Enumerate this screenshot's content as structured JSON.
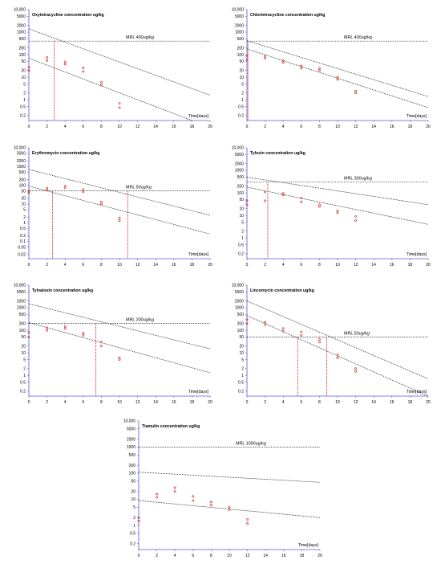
{
  "colors": {
    "axis": "#5a5adc",
    "tick": "#5a5adc",
    "line": "#000000",
    "points": "#d63a3a",
    "vline": "#c00000",
    "mrl": "#000000"
  },
  "chart_data": [
    {
      "type": "scatter",
      "title": "Oxytetracycline concentration ug/kg",
      "y_tick_labels": [
        "10,000",
        "5000",
        "2000",
        "1000",
        "500",
        "200",
        "100",
        "50",
        "20",
        "10",
        "5",
        "2",
        "1",
        "0.5",
        "0.2"
      ],
      "x_tick_labels": [
        "0",
        "2",
        "4",
        "6",
        "8",
        "10",
        "12",
        "14",
        "16",
        "18",
        "20"
      ],
      "xlabel": "Time[days]",
      "xlim": [
        0,
        20
      ],
      "ylim": [
        0.12,
        10000
      ],
      "y_scale": "log",
      "mrl": {
        "label": "MRL 400ug/kg",
        "value": 400
      },
      "intersections_days": [
        2.8
      ],
      "bands": [
        {
          "x": [
            0,
            20
          ],
          "y": [
            1400,
            1.6
          ]
        },
        {
          "x": [
            0,
            18
          ],
          "y": [
            70,
            0.12
          ]
        }
      ],
      "points": [
        {
          "x": 0,
          "y": 20
        },
        {
          "x": 0,
          "y": 28
        },
        {
          "x": 2,
          "y": 55
        },
        {
          "x": 2,
          "y": 75
        },
        {
          "x": 4,
          "y": 38
        },
        {
          "x": 4,
          "y": 48
        },
        {
          "x": 6,
          "y": 18
        },
        {
          "x": 6,
          "y": 26
        },
        {
          "x": 8,
          "y": 4.5
        },
        {
          "x": 8,
          "y": 6
        },
        {
          "x": 10,
          "y": 0.45
        },
        {
          "x": 10,
          "y": 0.7
        }
      ]
    },
    {
      "type": "scatter",
      "title": "Chlortetracycline concentration ug/kg",
      "y_tick_labels": [
        "10,000",
        "5000",
        "2000",
        "1000",
        "500",
        "200",
        "100",
        "50",
        "20",
        "10",
        "5",
        "2",
        "1",
        "0.5",
        "0.2"
      ],
      "x_tick_labels": [
        "0",
        "2",
        "4",
        "6",
        "8",
        "10",
        "12",
        "14",
        "16",
        "18",
        "20"
      ],
      "xlabel": "Time[days]",
      "xlim": [
        0,
        20
      ],
      "ylim": [
        0.12,
        10000
      ],
      "y_scale": "log",
      "mrl": {
        "label": "MRL 400ug/kg",
        "value": 400
      },
      "intersections_days": [
        0.1
      ],
      "bands": [
        {
          "x": [
            0,
            20
          ],
          "y": [
            420,
            1.4
          ]
        },
        {
          "x": [
            0,
            20
          ],
          "y": [
            180,
            0.45
          ]
        }
      ],
      "points": [
        {
          "x": 0,
          "y": 60
        },
        {
          "x": 0,
          "y": 90
        },
        {
          "x": 2,
          "y": 70
        },
        {
          "x": 2,
          "y": 85
        },
        {
          "x": 4,
          "y": 45
        },
        {
          "x": 4,
          "y": 55
        },
        {
          "x": 6,
          "y": 25
        },
        {
          "x": 6,
          "y": 32
        },
        {
          "x": 8,
          "y": 20
        },
        {
          "x": 8,
          "y": 25
        },
        {
          "x": 10,
          "y": 8
        },
        {
          "x": 10,
          "y": 10
        },
        {
          "x": 12,
          "y": 2
        },
        {
          "x": 12,
          "y": 2.5
        }
      ]
    },
    {
      "type": "scatter",
      "title": "Erythromycin concentration ug/kg",
      "y_tick_labels": [
        "10,000",
        "5000",
        "2000",
        "1000",
        "500",
        "200",
        "100",
        "50",
        "20",
        "10",
        "5",
        "2",
        "1",
        "0.5",
        "0.2",
        "0.1",
        "0.05",
        "0.02"
      ],
      "x_tick_labels": [
        "0",
        "2",
        "4",
        "6",
        "8",
        "10",
        "12",
        "14",
        "16",
        "18",
        "20"
      ],
      "xlabel": "Time[days]",
      "xlim": [
        0,
        20
      ],
      "ylim": [
        0.012,
        10000
      ],
      "y_scale": "log",
      "mrl": {
        "label": "MRL 50ug/kg",
        "value": 50
      },
      "intersections_days": [
        2.6,
        10.9
      ],
      "bands": [
        {
          "x": [
            0,
            20
          ],
          "y": [
            700,
            2.5
          ]
        },
        {
          "x": [
            0,
            20
          ],
          "y": [
            90,
            0.25
          ]
        }
      ],
      "points": [
        {
          "x": 0,
          "y": 40
        },
        {
          "x": 0,
          "y": 50
        },
        {
          "x": 2,
          "y": 55
        },
        {
          "x": 2,
          "y": 70
        },
        {
          "x": 4,
          "y": 75
        },
        {
          "x": 4,
          "y": 90
        },
        {
          "x": 6,
          "y": 45
        },
        {
          "x": 6,
          "y": 60
        },
        {
          "x": 8,
          "y": 10
        },
        {
          "x": 8,
          "y": 13
        },
        {
          "x": 10,
          "y": 1.3
        },
        {
          "x": 10,
          "y": 1.8
        }
      ]
    },
    {
      "type": "scatter",
      "title": "Tylosin concentration ug/kg",
      "y_tick_labels": [
        "10,000",
        "5000",
        "2000",
        "1000",
        "500",
        "200",
        "100",
        "50",
        "20",
        "10",
        "5",
        "2",
        "1",
        "0.5",
        "0.2"
      ],
      "x_tick_labels": [
        "0",
        "2",
        "4",
        "6",
        "8",
        "10",
        "12",
        "14",
        "16",
        "18",
        "20"
      ],
      "xlabel": "Time[days]",
      "xlim": [
        0,
        20
      ],
      "ylim": [
        0.12,
        10000
      ],
      "y_scale": "log",
      "mrl": {
        "label": "MRL 300ug/kg",
        "value": 300
      },
      "intersections_days": [
        2.3
      ],
      "bands": [
        {
          "x": [
            0,
            20
          ],
          "y": [
            500,
            30
          ]
        },
        {
          "x": [
            0,
            20
          ],
          "y": [
            180,
            4
          ]
        }
      ],
      "points": [
        {
          "x": 0,
          "y": 30
        },
        {
          "x": 0,
          "y": 45
        },
        {
          "x": 2,
          "y": 45
        },
        {
          "x": 2,
          "y": 110
        },
        {
          "x": 4,
          "y": 80
        },
        {
          "x": 4,
          "y": 95
        },
        {
          "x": 6,
          "y": 40
        },
        {
          "x": 6,
          "y": 60
        },
        {
          "x": 8,
          "y": 25
        },
        {
          "x": 8,
          "y": 30
        },
        {
          "x": 10,
          "y": 13
        },
        {
          "x": 10,
          "y": 16
        },
        {
          "x": 12,
          "y": 6
        },
        {
          "x": 12,
          "y": 9
        }
      ]
    },
    {
      "type": "scatter",
      "title": "Tylvalosin concentration ug/kg",
      "y_tick_labels": [
        "10,000",
        "5000",
        "2000",
        "1000",
        "500",
        "200",
        "100",
        "50",
        "20",
        "10",
        "5",
        "2",
        "1",
        "0.5",
        "0.2"
      ],
      "x_tick_labels": [
        "0",
        "2",
        "4",
        "6",
        "8",
        "10",
        "12",
        "14",
        "16",
        "18",
        "20"
      ],
      "xlabel": "Time[days]",
      "xlim": [
        0,
        20
      ],
      "ylim": [
        0.12,
        10000
      ],
      "y_scale": "log",
      "mrl": {
        "label": "MRL 200ug/kg",
        "value": 200
      },
      "intersections_days": [
        7.4
      ],
      "bands": [
        {
          "x": [
            0,
            20
          ],
          "y": [
            1500,
            15
          ]
        },
        {
          "x": [
            0,
            20
          ],
          "y": [
            220,
            1.3
          ]
        }
      ],
      "points": [
        {
          "x": 0,
          "y": 50
        },
        {
          "x": 0,
          "y": 80
        },
        {
          "x": 2,
          "y": 100
        },
        {
          "x": 2,
          "y": 130
        },
        {
          "x": 4,
          "y": 120
        },
        {
          "x": 4,
          "y": 150
        },
        {
          "x": 6,
          "y": 60
        },
        {
          "x": 6,
          "y": 75
        },
        {
          "x": 8,
          "y": 20
        },
        {
          "x": 8,
          "y": 30
        },
        {
          "x": 10,
          "y": 5
        },
        {
          "x": 10,
          "y": 6
        }
      ]
    },
    {
      "type": "scatter",
      "title": "Lincomycin concentration ug/kg",
      "y_tick_labels": [
        "10,000",
        "5000",
        "2000",
        "1000",
        "500",
        "200",
        "100",
        "50",
        "20",
        "10",
        "5",
        "2",
        "1",
        "0.5",
        "0.2"
      ],
      "x_tick_labels": [
        "0",
        "2",
        "4",
        "6",
        "8",
        "10",
        "12",
        "14",
        "16",
        "18",
        "20"
      ],
      "xlabel": "Time[days]",
      "xlim": [
        0,
        20
      ],
      "ylim": [
        0.12,
        10000
      ],
      "y_scale": "log",
      "mrl": {
        "label": "MRL 50ug/kg",
        "value": 50
      },
      "intersections_days": [
        5.6,
        8.8
      ],
      "bands": [
        {
          "x": [
            0,
            20
          ],
          "y": [
            2000,
            0.7
          ]
        },
        {
          "x": [
            0,
            20
          ],
          "y": [
            450,
            0.12
          ]
        }
      ],
      "points": [
        {
          "x": 0,
          "y": 200
        },
        {
          "x": 0,
          "y": 300
        },
        {
          "x": 2,
          "y": 180
        },
        {
          "x": 2,
          "y": 230
        },
        {
          "x": 4,
          "y": 90
        },
        {
          "x": 4,
          "y": 120
        },
        {
          "x": 6,
          "y": 60
        },
        {
          "x": 6,
          "y": 85
        },
        {
          "x": 8,
          "y": 30
        },
        {
          "x": 8,
          "y": 40
        },
        {
          "x": 10,
          "y": 6
        },
        {
          "x": 10,
          "y": 8
        },
        {
          "x": 12,
          "y": 1.5
        },
        {
          "x": 12,
          "y": 2
        }
      ]
    },
    {
      "type": "scatter",
      "title": "Tiamulin concentration ug/kg",
      "y_tick_labels": [
        "10,000",
        "5000",
        "2000",
        "1000",
        "500",
        "200",
        "100",
        "50",
        "20",
        "10",
        "5",
        "2",
        "1",
        "0.5",
        "0.2"
      ],
      "x_tick_labels": [
        "0",
        "2",
        "4",
        "6",
        "8",
        "10",
        "12",
        "14",
        "16",
        "18",
        "20"
      ],
      "xlabel": "Time[days]",
      "xlim": [
        0,
        20
      ],
      "ylim": [
        0.12,
        10000
      ],
      "y_scale": "log",
      "mrl": {
        "label": "MRL 1000ug/kg",
        "value": 1000
      },
      "intersections_days": [],
      "bands": [
        {
          "x": [
            0,
            20
          ],
          "y": [
            110,
            45
          ]
        },
        {
          "x": [
            0,
            20
          ],
          "y": [
            9,
            2
          ]
        }
      ],
      "points": [
        {
          "x": 0,
          "y": 1.5
        },
        {
          "x": 0,
          "y": 2
        },
        {
          "x": 2,
          "y": 12
        },
        {
          "x": 2,
          "y": 16
        },
        {
          "x": 4,
          "y": 20
        },
        {
          "x": 4,
          "y": 28
        },
        {
          "x": 6,
          "y": 9
        },
        {
          "x": 6,
          "y": 13
        },
        {
          "x": 8,
          "y": 6
        },
        {
          "x": 8,
          "y": 8
        },
        {
          "x": 10,
          "y": 4
        },
        {
          "x": 10,
          "y": 5
        },
        {
          "x": 12,
          "y": 1.2
        },
        {
          "x": 12,
          "y": 1.7
        }
      ]
    }
  ]
}
